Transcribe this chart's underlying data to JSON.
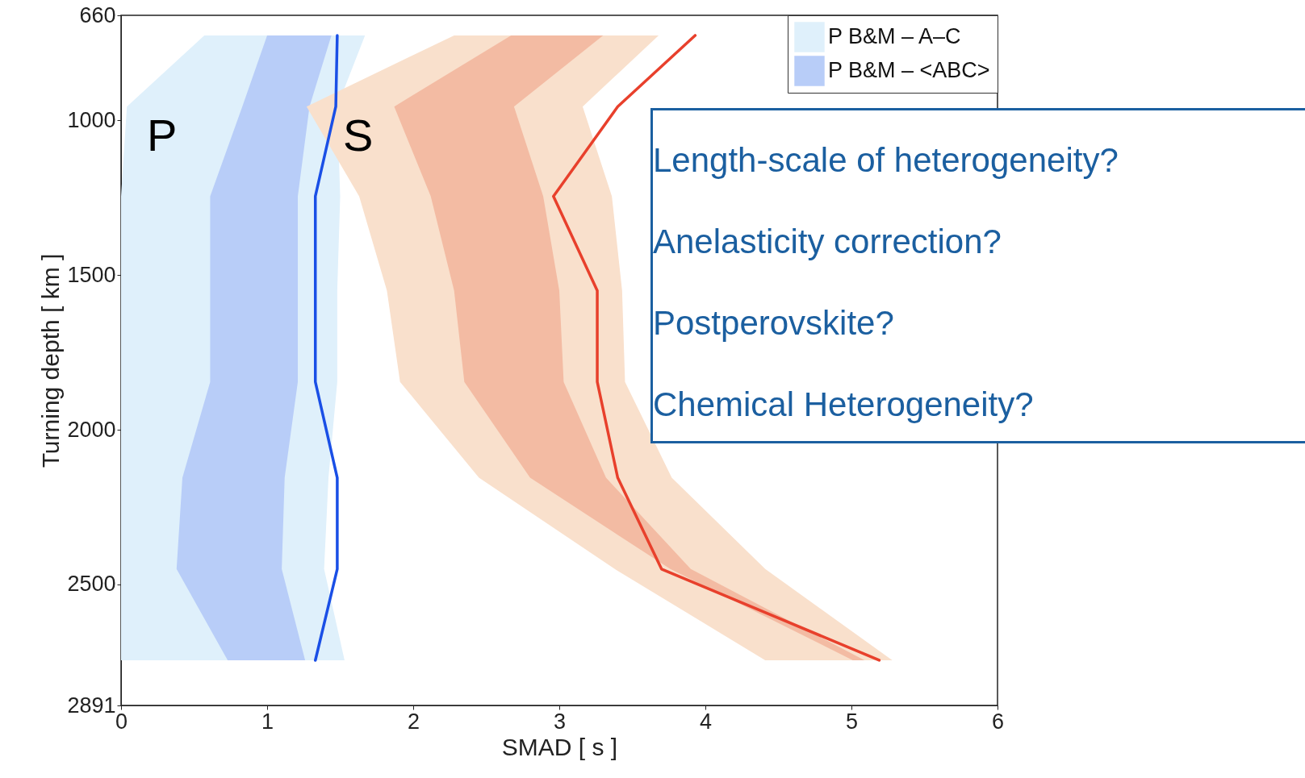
{
  "chart_data": {
    "type": "line",
    "orientation": "horizontal",
    "xlabel": "SMAD [ s ]",
    "ylabel": "Turning depth [ km ]",
    "x": [
      725,
      955,
      1245,
      1550,
      1845,
      2155,
      2450,
      2745
    ],
    "xlim": [
      0,
      6
    ],
    "xticks": [
      0,
      1,
      2,
      3,
      4,
      5,
      6
    ],
    "ylim": [
      2891,
      660
    ],
    "yticks": [
      660,
      1000,
      1500,
      2000,
      2500,
      2891
    ],
    "grid": false,
    "legend": "top right",
    "series": [
      {
        "type": "area",
        "name": "P B&M – A–C",
        "color": "#dff0fb",
        "values": [
          null,
          null,
          null,
          null,
          null,
          null,
          null,
          null
        ],
        "lower": [
          0.57,
          0.04,
          0,
          0,
          0,
          0,
          0,
          0
        ],
        "upper": [
          1.67,
          1.48,
          1.5,
          1.48,
          1.48,
          1.42,
          1.39,
          1.53
        ]
      },
      {
        "type": "area",
        "name": "P B&M – <ABC>",
        "color": "#b8cdf8",
        "values": [
          null,
          null,
          null,
          null,
          null,
          null,
          null,
          null
        ],
        "lower": [
          1.0,
          0.83,
          0.61,
          0.61,
          0.61,
          0.42,
          0.38,
          0.73
        ],
        "upper": [
          1.44,
          1.29,
          1.21,
          1.21,
          1.21,
          1.12,
          1.1,
          1.26
        ]
      },
      {
        "type": "area",
        "color": "#f9e0cc",
        "values": [
          null,
          null,
          null,
          null,
          null,
          null,
          null,
          null
        ],
        "lower": [
          2.28,
          1.27,
          1.63,
          1.82,
          1.91,
          2.45,
          3.38,
          4.41
        ],
        "upper": [
          3.68,
          3.16,
          3.36,
          3.43,
          3.45,
          3.77,
          4.41,
          5.28
        ]
      },
      {
        "type": "area",
        "color": "#f3bba3",
        "values": [
          null,
          null,
          null,
          null,
          null,
          null,
          null,
          null
        ],
        "lower": [
          2.67,
          1.87,
          2.12,
          2.28,
          2.35,
          2.8,
          3.76,
          5.01
        ],
        "upper": [
          3.3,
          2.69,
          2.89,
          3.0,
          3.03,
          3.32,
          3.9,
          5.09
        ]
      },
      {
        "color": "#1a4fe6",
        "values": [
          1.48,
          1.47,
          1.33,
          1.33,
          1.33,
          1.48,
          1.48,
          1.33
        ]
      },
      {
        "color": "#e8402c",
        "values": [
          3.93,
          3.4,
          2.96,
          3.26,
          3.26,
          3.4,
          3.7,
          5.19
        ]
      }
    ],
    "annotations": [
      "P",
      "S",
      "Length-scale of heterogeneity?",
      "Anelasticity correction?",
      "Postperovskite?",
      "Chemical Heterogeneity?"
    ]
  }
}
